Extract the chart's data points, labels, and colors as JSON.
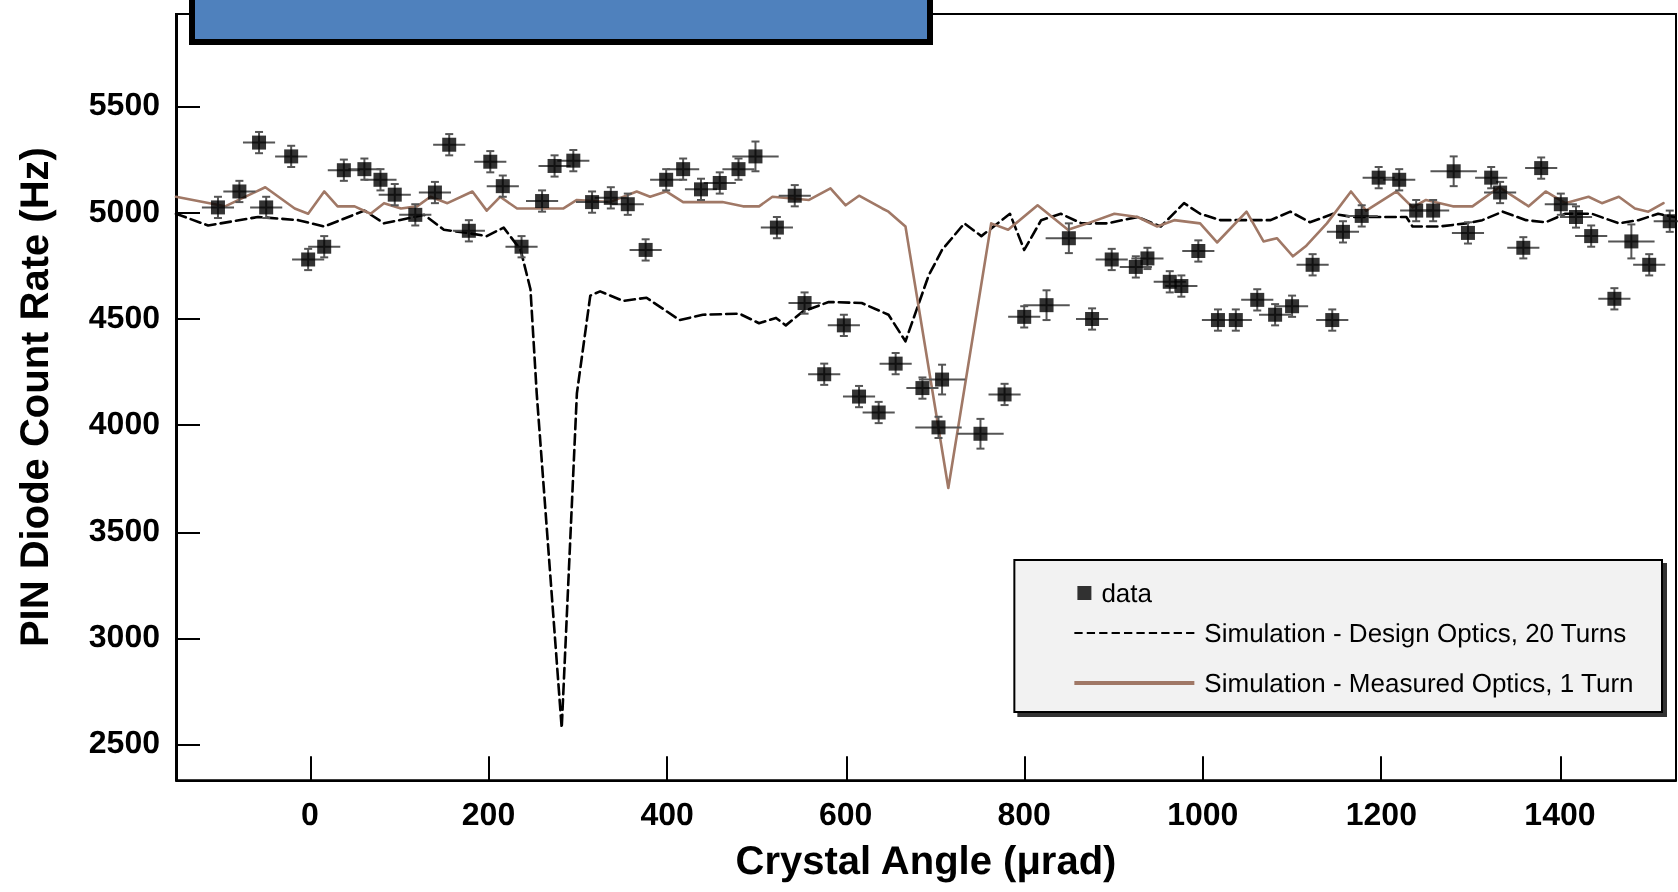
{
  "chart_data": {
    "type": "scatter",
    "xlabel": "Crystal Angle (μrad)",
    "ylabel": "PIN Diode Count Rate (Hz)",
    "xlim": [
      -150,
      1530
    ],
    "xticks": [
      0,
      200,
      400,
      600,
      800,
      1000,
      1200,
      1400
    ],
    "ylim": [
      2330,
      5935
    ],
    "yticks": [
      2500,
      3000,
      3500,
      4000,
      4500,
      5000,
      5500
    ],
    "grid": false,
    "legend": "bottom right",
    "series": [
      {
        "name": "data",
        "marker": "square",
        "color": "#000000",
        "x": [
          -103,
          -79,
          -57,
          -49,
          -21,
          -2,
          16,
          38,
          61,
          79,
          95,
          118,
          140,
          156,
          178,
          202,
          216,
          237,
          260,
          274,
          295,
          316,
          337,
          356,
          376,
          399,
          418,
          438,
          459,
          480,
          499,
          523,
          543,
          554,
          576,
          598,
          615,
          637,
          656,
          686,
          704,
          708,
          751,
          778,
          800,
          825,
          850,
          876,
          898,
          925,
          938,
          963,
          976,
          995,
          1017,
          1037,
          1061,
          1081,
          1100,
          1123,
          1145,
          1157,
          1178,
          1197,
          1220,
          1239,
          1258,
          1281,
          1297,
          1323,
          1333,
          1359,
          1379,
          1401,
          1418,
          1435,
          1461,
          1480,
          1500,
          1523
        ],
        "values": [
          5025,
          5100,
          5330,
          5025,
          5265,
          4780,
          4840,
          5200,
          5205,
          5155,
          5085,
          4990,
          5095,
          5320,
          4915,
          5240,
          5125,
          4840,
          5055,
          5220,
          5245,
          5050,
          5070,
          5040,
          4825,
          5155,
          5205,
          5110,
          5140,
          5205,
          5265,
          4930,
          5080,
          4575,
          4240,
          4470,
          4135,
          4060,
          4290,
          4175,
          3990,
          4215,
          3960,
          4145,
          4510,
          4565,
          4880,
          4500,
          4780,
          4745,
          4785,
          4675,
          4655,
          4820,
          4495,
          4495,
          4590,
          4520,
          4560,
          4755,
          4495,
          4910,
          4985,
          5165,
          5155,
          5010,
          5010,
          5195,
          4905,
          5165,
          5095,
          4835,
          5210,
          5040,
          4980,
          4890,
          4595,
          4865,
          4755,
          4960
        ],
        "errors": [
          50,
          50,
          50,
          50,
          50,
          50,
          50,
          50,
          50,
          50,
          50,
          50,
          50,
          50,
          50,
          50,
          50,
          50,
          50,
          50,
          50,
          50,
          50,
          50,
          50,
          50,
          50,
          50,
          50,
          50,
          70,
          50,
          50,
          50,
          50,
          50,
          50,
          50,
          50,
          50,
          50,
          70,
          70,
          50,
          50,
          70,
          70,
          50,
          50,
          50,
          50,
          50,
          50,
          50,
          50,
          50,
          50,
          50,
          50,
          50,
          50,
          50,
          50,
          50,
          50,
          50,
          50,
          70,
          50,
          50,
          50,
          50,
          50,
          50,
          50,
          50,
          50,
          80,
          50,
          50
        ],
        "xerrors": [
          18,
          18,
          18,
          18,
          18,
          18,
          18,
          18,
          18,
          18,
          18,
          18,
          18,
          18,
          18,
          18,
          18,
          18,
          18,
          18,
          18,
          18,
          18,
          18,
          18,
          18,
          18,
          18,
          18,
          18,
          26,
          18,
          18,
          18,
          18,
          18,
          18,
          18,
          18,
          18,
          26,
          26,
          26,
          18,
          18,
          26,
          26,
          18,
          18,
          18,
          18,
          18,
          18,
          18,
          18,
          18,
          18,
          18,
          18,
          18,
          18,
          18,
          18,
          18,
          18,
          18,
          18,
          26,
          18,
          18,
          18,
          18,
          18,
          18,
          18,
          18,
          18,
          26,
          18,
          18
        ]
      },
      {
        "name": "Simulation - Design Optics, 20 Turns",
        "type": "line",
        "marker": "none",
        "line_style": "dashed",
        "color": "#000000",
        "x": [
          -150,
          -114,
          -58,
          -13,
          16,
          61,
          83,
          128,
          150,
          176,
          198,
          217,
          236,
          247,
          254,
          282,
          299,
          314,
          325,
          351,
          377,
          414,
          440,
          481,
          503,
          522,
          533,
          552,
          581,
          618,
          648,
          667,
          693,
          708,
          733,
          752,
          784,
          800,
          819,
          841,
          864,
          893,
          927,
          953,
          979,
          997,
          1020,
          1049,
          1076,
          1098,
          1120,
          1146,
          1168,
          1198,
          1228,
          1235,
          1265,
          1295,
          1313,
          1336,
          1362,
          1384,
          1406,
          1436,
          1466,
          1488,
          1510,
          1528
        ],
        "values": [
          4995,
          4940,
          4980,
          4965,
          4935,
          5010,
          4950,
          4990,
          4920,
          4905,
          4890,
          4930,
          4825,
          4640,
          4150,
          2575,
          4150,
          4610,
          4630,
          4585,
          4600,
          4495,
          4520,
          4525,
          4480,
          4505,
          4470,
          4535,
          4580,
          4575,
          4520,
          4395,
          4705,
          4825,
          4950,
          4890,
          4995,
          4825,
          4965,
          4995,
          4950,
          4950,
          4980,
          4935,
          5045,
          4995,
          4965,
          4965,
          4965,
          5005,
          4955,
          4995,
          4980,
          4980,
          4980,
          4935,
          4935,
          4950,
          4965,
          5005,
          4965,
          4955,
          4995,
          4995,
          4950,
          4965,
          4995,
          4980
        ]
      },
      {
        "name": "Simulation - Measured Optics, 1 Turn",
        "type": "line",
        "marker": "none",
        "line_style": "solid",
        "color": "#a07866",
        "x": [
          -150,
          -95,
          -50,
          -17,
          -2,
          16,
          31,
          50,
          68,
          83,
          102,
          120,
          135,
          154,
          182,
          198,
          213,
          232,
          284,
          299,
          336,
          366,
          381,
          399,
          418,
          462,
          485,
          503,
          518,
          559,
          583,
          600,
          615,
          641,
          648,
          667,
          715,
          763,
          782,
          815,
          849,
          871,
          901,
          927,
          949,
          968,
          997,
          1016,
          1049,
          1068,
          1083,
          1101,
          1116,
          1139,
          1166,
          1183,
          1217,
          1235,
          1250,
          1280,
          1302,
          1332,
          1365,
          1384,
          1406,
          1432,
          1447,
          1466,
          1484,
          1499,
          1516
        ],
        "values": [
          5075,
          5030,
          5120,
          5020,
          4995,
          5100,
          5030,
          5030,
          4995,
          5045,
          5020,
          5030,
          5075,
          5045,
          5100,
          5010,
          5075,
          5020,
          5020,
          5060,
          5050,
          5100,
          5075,
          5100,
          5050,
          5050,
          5030,
          5030,
          5075,
          5060,
          5115,
          5035,
          5080,
          5020,
          5005,
          4935,
          3705,
          4950,
          4920,
          5035,
          4920,
          4950,
          4995,
          4980,
          4935,
          4965,
          4950,
          4860,
          5005,
          4865,
          4880,
          4795,
          4845,
          4950,
          5100,
          5010,
          5100,
          5025,
          5060,
          5030,
          5030,
          5120,
          5030,
          5100,
          5045,
          5075,
          5045,
          5075,
          5020,
          5005,
          5045
        ]
      }
    ]
  }
}
